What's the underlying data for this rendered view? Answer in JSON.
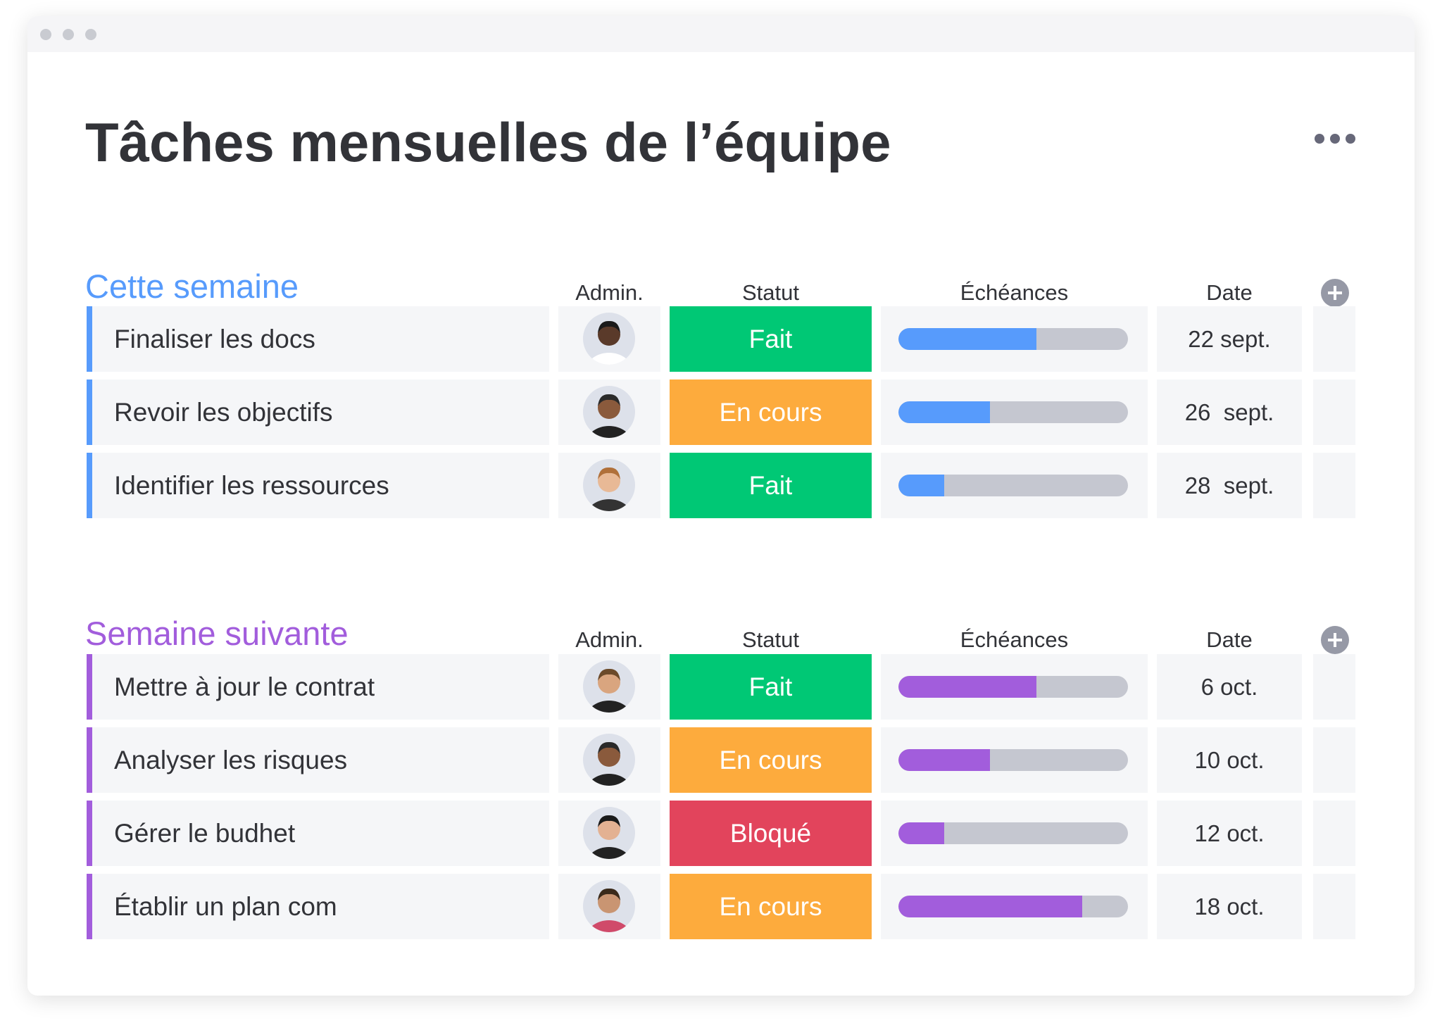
{
  "header": {
    "title": "Tâches mensuelles de l’équipe"
  },
  "groups": [
    {
      "title": "Cette semaine",
      "color": "#579bfc",
      "columns": [
        "Admin.",
        "Statut",
        "Échéances",
        "Date"
      ],
      "rows": [
        {
          "task": "Finaliser les docs",
          "status": "Fait",
          "status_color": "#00c875",
          "progress": 60,
          "date": "22 sept."
        },
        {
          "task": "Revoir les objectifs",
          "status": "En cours",
          "status_color": "#fdab3d",
          "progress": 40,
          "date": "26  sept."
        },
        {
          "task": "Identifier les ressources",
          "status": "Fait",
          "status_color": "#00c875",
          "progress": 20,
          "date": "28  sept."
        }
      ]
    },
    {
      "title": "Semaine suivante",
      "color": "#a25ddc",
      "columns": [
        "Admin.",
        "Statut",
        "Échéances",
        "Date"
      ],
      "rows": [
        {
          "task": "Mettre à jour le contrat",
          "status": "Fait",
          "status_color": "#00c875",
          "progress": 60,
          "date": "6 oct."
        },
        {
          "task": "Analyser les risques",
          "status": "En cours",
          "status_color": "#fdab3d",
          "progress": 40,
          "date": "10 oct."
        },
        {
          "task": "Gérer le budhet",
          "status": "Bloqué",
          "status_color": "#e2445c",
          "progress": 20,
          "date": "12 oct."
        },
        {
          "task": "Établir un plan com",
          "status": "En cours",
          "status_color": "#fdab3d",
          "progress": 80,
          "date": "18 oct."
        }
      ]
    }
  ]
}
